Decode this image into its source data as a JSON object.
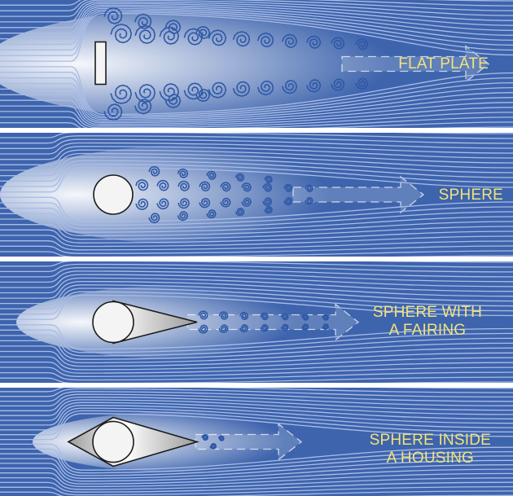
{
  "figure": {
    "background_color": "#3e64ad",
    "streamline_color": "#a9bde6",
    "label_color": "#f2e27a",
    "wake_color": "#ffffff",
    "object_fill": "#f4f4f4",
    "object_stroke": "#1b1b1b",
    "panels": [
      {
        "label": "FLAT PLATE",
        "object": "flat-plate",
        "wake": "large-vortex-wake"
      },
      {
        "label": "SPHERE",
        "object": "sphere",
        "wake": "medium-vortex-wake"
      },
      {
        "label": "SPHERE WITH\nA FAIRING",
        "object": "sphere-with-fairing",
        "wake": "small-vortex-wake"
      },
      {
        "label": "SPHERE INSIDE\nA HOUSING",
        "object": "sphere-inside-housing",
        "wake": "minimal-wake"
      }
    ]
  }
}
